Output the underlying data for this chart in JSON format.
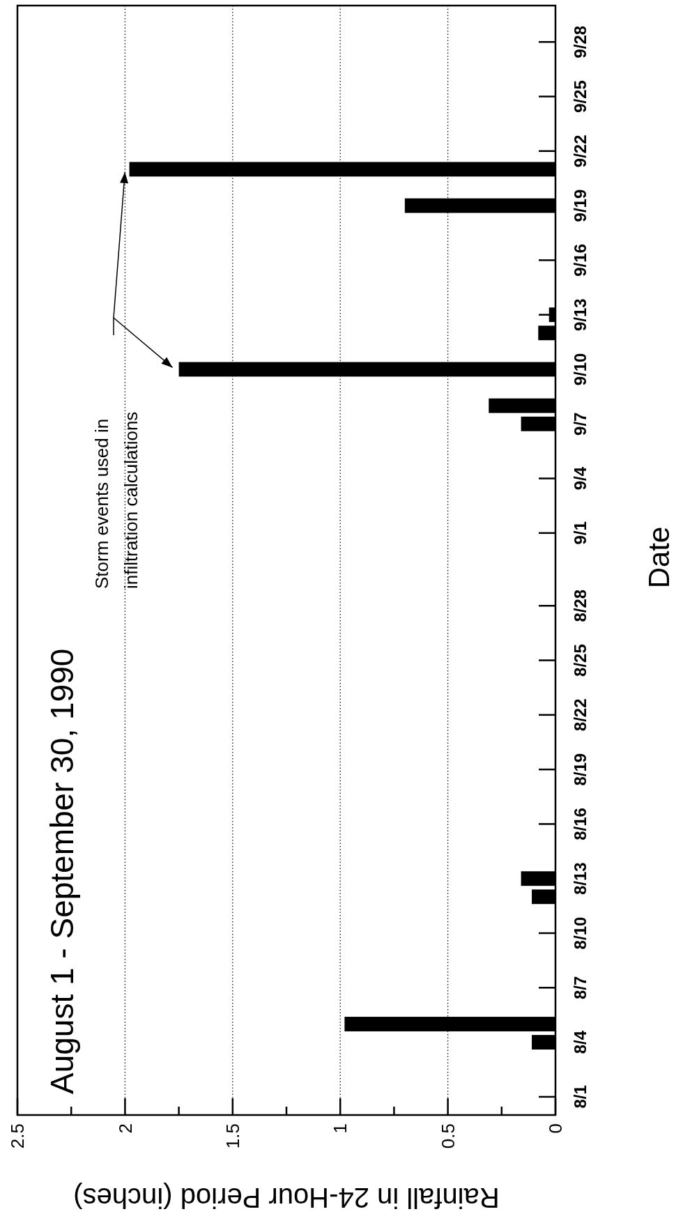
{
  "chart_data": {
    "type": "bar",
    "orientation": "horizontal",
    "title": "August 1 - September 30, 1990",
    "xlabel": "Rainfall in 24-Hour Period (inches)",
    "ylabel": "Date",
    "annotations": [
      "Storm events used in\ninfiltration calculations"
    ],
    "series": [
      {
        "color": "#000000",
        "x": [
          "1990-08-04",
          "1990-08-05",
          "1990-08-12",
          "1990-08-13",
          "1990-09-07",
          "1990-09-08",
          "1990-09-10",
          "1990-09-12",
          "1990-09-13",
          "1990-09-19",
          "1990-09-21"
        ],
        "values": [
          0.11,
          0.98,
          0.11,
          0.16,
          0.16,
          0.31,
          1.75,
          0.08,
          0.03,
          0.7,
          1.98
        ]
      }
    ],
    "xlim": [
      2.5,
      0
    ],
    "xticks": [
      0,
      {
        "value": 0.25,
        "label": null
      },
      0.5,
      {
        "value": 0.75,
        "label": null
      },
      1,
      {
        "value": 1.25,
        "label": null
      },
      1.5,
      {
        "value": 1.75,
        "label": null
      },
      2,
      {
        "value": 2.25,
        "label": null
      },
      2.5
    ],
    "ylim": [
      "1990-07-31",
      "1990-09-30"
    ],
    "yticks": [
      {
        "value": "1990-08-01",
        "label": "8/1"
      },
      {
        "value": "1990-08-04",
        "label": "8/4"
      },
      {
        "value": "1990-08-07",
        "label": "8/7"
      },
      {
        "value": "1990-08-10",
        "label": "8/10"
      },
      {
        "value": "1990-08-13",
        "label": "8/13"
      },
      {
        "value": "1990-08-16",
        "label": "8/16"
      },
      {
        "value": "1990-08-19",
        "label": "8/19"
      },
      {
        "value": "1990-08-22",
        "label": "8/22"
      },
      {
        "value": "1990-08-25",
        "label": "8/25"
      },
      {
        "value": "1990-08-28",
        "label": "8/28"
      },
      {
        "value": "1990-09-01",
        "label": "9/1"
      },
      {
        "value": "1990-09-04",
        "label": "9/4"
      },
      {
        "value": "1990-09-07",
        "label": "9/7"
      },
      {
        "value": "1990-09-10",
        "label": "9/10"
      },
      {
        "value": "1990-09-13",
        "label": "9/13"
      },
      {
        "value": "1990-09-16",
        "label": "9/16"
      },
      {
        "value": "1990-09-19",
        "label": "9/19"
      },
      {
        "value": "1990-09-22",
        "label": "9/22"
      },
      {
        "value": "1990-09-25",
        "label": "9/25"
      },
      {
        "value": "1990-09-28",
        "label": "9/28"
      }
    ],
    "grid": "x"
  }
}
